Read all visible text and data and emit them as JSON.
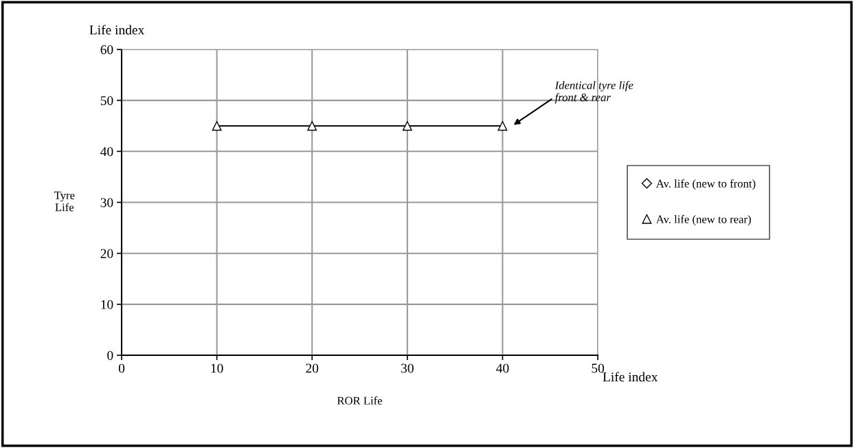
{
  "chart_data": {
    "type": "line",
    "xlabel": "ROR Life",
    "ylabel": "Tyre\nLife",
    "x": [
      10,
      20,
      30,
      40
    ],
    "series": [
      {
        "name": "Av. life (new to front)",
        "color": "#000000",
        "marker": "diamond",
        "values": [
          null,
          null,
          null,
          null
        ]
      },
      {
        "name": "Av. life (new to rear)",
        "color": "#000000",
        "marker": "triangle",
        "values": [
          45,
          45,
          45,
          45
        ]
      }
    ],
    "xlim": [
      0,
      50
    ],
    "xticks": [
      0,
      10,
      20,
      30,
      40,
      50
    ],
    "ylim": [
      0,
      60
    ],
    "yticks": [
      0,
      10,
      20,
      30,
      40,
      50,
      60
    ],
    "grid": true,
    "legend": "right",
    "line_style": "solid",
    "annotations": [
      "Life index",
      "Life index",
      "Identical tyre life\nfront & rear"
    ]
  }
}
